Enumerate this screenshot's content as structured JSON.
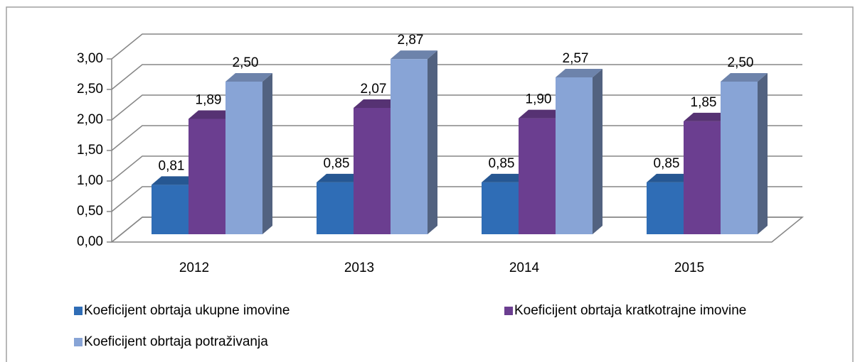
{
  "chart_data": {
    "type": "bar",
    "categories": [
      "2012",
      "2013",
      "2014",
      "2015"
    ],
    "series": [
      {
        "name": "Koeficijent obrtaja ukupne imovine",
        "color": "#2f6db6",
        "values": [
          0.81,
          0.85,
          0.85,
          0.85
        ],
        "value_labels": [
          "0,81",
          "0,85",
          "0,85",
          "0,85"
        ]
      },
      {
        "name": "Koeficijent obrtaja kratkotrajne imovine",
        "color": "#6b3e90",
        "values": [
          1.89,
          2.07,
          1.9,
          1.85
        ],
        "value_labels": [
          "1,89",
          "2,07",
          "1,90",
          "1,85"
        ]
      },
      {
        "name": "Koeficijent obrtaja potraživanja",
        "color": "#88a4d6",
        "values": [
          2.5,
          2.87,
          2.57,
          2.5
        ],
        "value_labels": [
          "2,50",
          "2,87",
          "2,57",
          "2,50"
        ]
      }
    ],
    "ylim": [
      0,
      3
    ],
    "yticks": [
      {
        "value": 0,
        "label": "0,00"
      },
      {
        "value": 0.5,
        "label": "0,50"
      },
      {
        "value": 1,
        "label": "1,00"
      },
      {
        "value": 1.5,
        "label": "1,50"
      },
      {
        "value": 2,
        "label": "2,00"
      },
      {
        "value": 2.5,
        "label": "2,50"
      },
      {
        "value": 3,
        "label": "3,00"
      }
    ],
    "grid": true,
    "legend": "bottom"
  }
}
